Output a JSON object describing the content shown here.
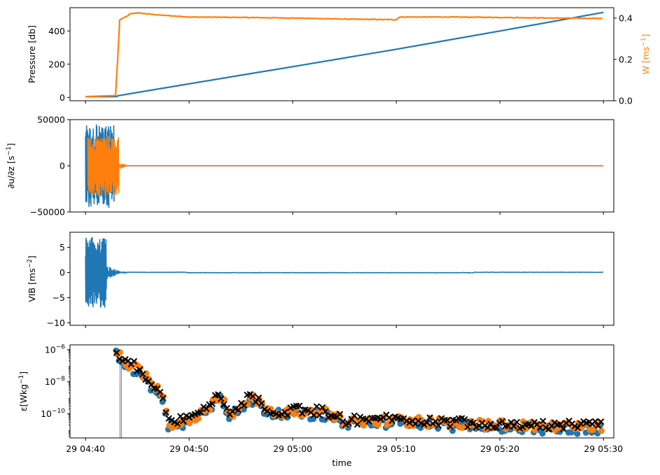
{
  "figure": {
    "xlabel": "time"
  },
  "colors": {
    "blue": "#1f77b4",
    "orange": "#ff7f0e",
    "black": "#000000",
    "gray": "#7f7f7f"
  },
  "time_axis": {
    "range_min": [
      -1.5,
      51
    ],
    "ticks": [
      {
        "label": "29 04:40",
        "min": 0
      },
      {
        "label": "29 04:50",
        "min": 10
      },
      {
        "label": "29 05:00",
        "min": 20
      },
      {
        "label": "29 05:10",
        "min": 30
      },
      {
        "label": "29 05:20",
        "min": 40
      },
      {
        "label": "29 05:30",
        "min": 50
      }
    ]
  },
  "chart_data": [
    {
      "type": "line",
      "ylabel": "Pressure [db]",
      "ylim": [
        -20,
        540
      ],
      "yticks": [
        {
          "v": 0,
          "label": "0"
        },
        {
          "v": 200,
          "label": "200"
        },
        {
          "v": 400,
          "label": "400"
        }
      ],
      "y2label": "W [ms$^{-1}$]",
      "y2label_text": "W [ms",
      "y2label_sup": "−1",
      "y2label_close": "]",
      "y2lim": [
        0,
        0.45
      ],
      "y2ticks": [
        {
          "v": 0.0,
          "label": "0.0"
        },
        {
          "v": 0.2,
          "label": "0.2"
        },
        {
          "v": 0.4,
          "label": "0.4"
        }
      ],
      "series": [
        {
          "axis": "left",
          "color": "blue",
          "x": [
            0,
            3,
            3.1,
            10,
            20,
            30,
            40,
            50
          ],
          "y": [
            5,
            5,
            10,
            82,
            185,
            290,
            400,
            512
          ]
        },
        {
          "axis": "right",
          "color": "orange",
          "x": [
            0,
            2.9,
            3.1,
            3.3,
            3.6,
            3.9,
            4.3,
            5,
            7,
            10,
            15,
            20,
            25,
            30,
            30.3,
            35,
            40,
            45,
            50
          ],
          "y": [
            0.02,
            0.025,
            0.2,
            0.39,
            0.4,
            0.405,
            0.42,
            0.425,
            0.415,
            0.405,
            0.403,
            0.4,
            0.395,
            0.392,
            0.405,
            0.405,
            0.403,
            0.4,
            0.398
          ]
        }
      ]
    },
    {
      "type": "line",
      "ylabel": "∂u/∂z [s",
      "ylabel_sup": "−1",
      "ylabel_close": "]",
      "ylim": [
        -50000,
        50000
      ],
      "yticks": [
        {
          "v": 50000,
          "label": "50000"
        },
        {
          "v": 0,
          "label": "0"
        },
        {
          "v": -50000,
          "label": "−50000"
        }
      ],
      "series": [
        {
          "color": "blue",
          "burst": {
            "start": 0,
            "end": 2.8,
            "amp": 45000,
            "tail_end": 3.5,
            "tail_amp": 3000
          }
        },
        {
          "color": "orange",
          "burst": {
            "start": 0.2,
            "end": 3.2,
            "amp": 32000,
            "tail_end": 4.0,
            "tail_amp": 4000
          }
        }
      ]
    },
    {
      "type": "line",
      "ylabel": "VIB [ms",
      "ylabel_sup": "−2",
      "ylabel_close": "]",
      "ylim": [
        -10.5,
        8
      ],
      "yticks": [
        {
          "v": 5,
          "label": "5"
        },
        {
          "v": 0,
          "label": "0"
        },
        {
          "v": -5,
          "label": "−5"
        },
        {
          "v": -10,
          "label": "−10"
        }
      ],
      "series": [
        {
          "color": "blue",
          "burst": {
            "start": 0,
            "end": 2.0,
            "amp": 7,
            "tail_end": 3.5,
            "tail_amp": 1.3,
            "noise": 0.08
          }
        }
      ]
    },
    {
      "type": "scatter",
      "ylabel": "ε[Wkg",
      "ylabel_sup": "−1",
      "ylabel_close": "]",
      "yscale": "log",
      "ylim_log10": [
        -11.5,
        -5.7
      ],
      "yticks": [
        {
          "v": -6,
          "label": "10",
          "sup": "−6"
        },
        {
          "v": -8,
          "label": "10",
          "sup": "−8"
        },
        {
          "v": -10,
          "label": "10",
          "sup": "−10"
        }
      ],
      "vline_x": 3.4,
      "trend": {
        "x": [
          3.0,
          3.5,
          5,
          6,
          7.3,
          8,
          10,
          11,
          13,
          14,
          15,
          16,
          18,
          20,
          23,
          25,
          30,
          35,
          40,
          45,
          50
        ],
        "y": [
          -6.0,
          -6.6,
          -7.1,
          -7.8,
          -8.6,
          -10.5,
          -10.3,
          -9.9,
          -8.8,
          -9.9,
          -9.4,
          -8.9,
          -9.8,
          -9.8,
          -9.8,
          -10.4,
          -10.3,
          -10.5,
          -10.6,
          -10.7,
          -10.7
        ]
      },
      "series": [
        {
          "name": "",
          "color": "blue",
          "marker": "circle"
        },
        {
          "name": "",
          "color": "orange",
          "marker": "circle"
        },
        {
          "name": "",
          "color": "black",
          "marker": "x"
        }
      ]
    }
  ]
}
